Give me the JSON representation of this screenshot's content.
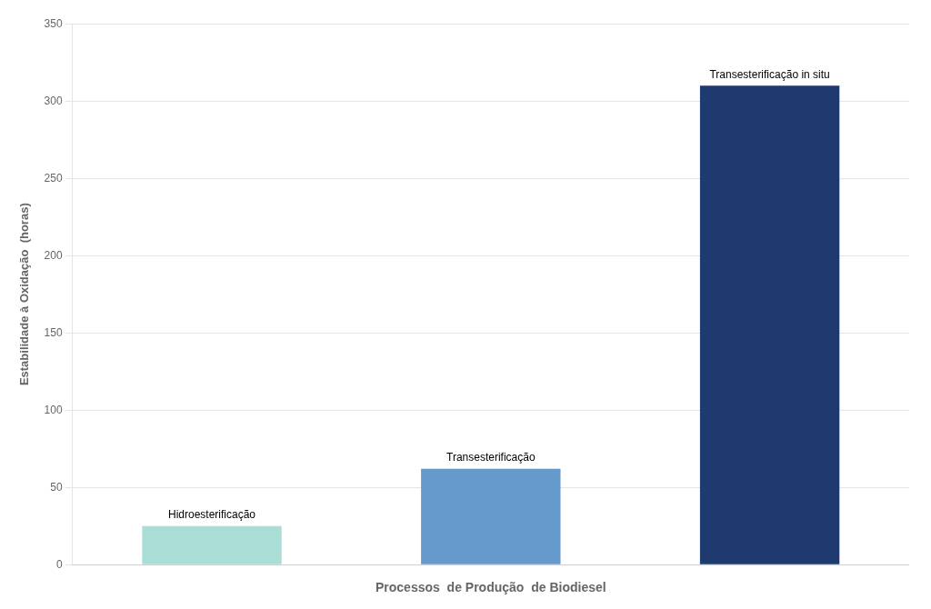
{
  "chart_data": {
    "type": "bar",
    "categories": [
      "Hidroesterificação",
      "Transesterificação",
      "Transesterificação in situ"
    ],
    "values": [
      25,
      62,
      310
    ],
    "colors": [
      "#aaddd6",
      "#6699cc",
      "#1f3a6e"
    ],
    "xlabel": "Processos  de Produção  de Biodiesel",
    "ylabel": "Estabilidade à Oxidação  (horas)",
    "ylim": [
      0,
      350
    ],
    "yticks": [
      0,
      50,
      100,
      150,
      200,
      250,
      300,
      350
    ],
    "grid": true,
    "tick_labels": "y"
  }
}
